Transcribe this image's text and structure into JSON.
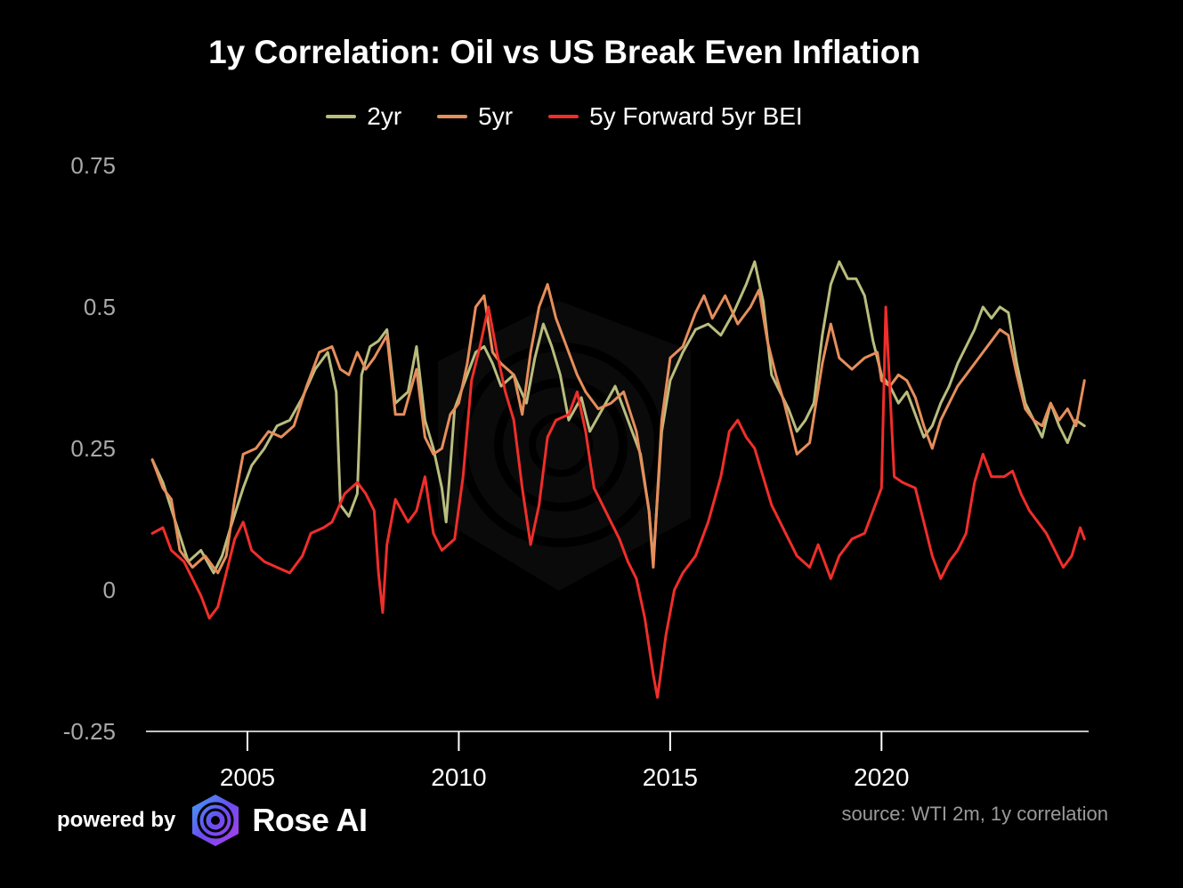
{
  "chart_data": {
    "type": "line",
    "title": "1y Correlation: Oil vs US Break Even Inflation",
    "xlabel": "",
    "ylabel": "",
    "xlim": [
      2002.6,
      2024.9
    ],
    "ylim": [
      -0.25,
      0.75
    ],
    "x_ticks": [
      2005,
      2010,
      2015,
      2020
    ],
    "x_tick_labels": [
      "2005",
      "2010",
      "2015",
      "2020"
    ],
    "y_ticks": [
      -0.25,
      0,
      0.25,
      0.5,
      0.75
    ],
    "y_tick_labels": [
      "-0.25",
      "0",
      "0.25",
      "0.5",
      "0.75"
    ],
    "grid": false,
    "legend_position": "top-center",
    "series": [
      {
        "name": "2yr",
        "color": "#b9bd7e",
        "points": [
          [
            2002.75,
            0.23
          ],
          [
            2003.0,
            0.19
          ],
          [
            2003.3,
            0.12
          ],
          [
            2003.6,
            0.05
          ],
          [
            2003.9,
            0.07
          ],
          [
            2004.2,
            0.03
          ],
          [
            2004.4,
            0.06
          ],
          [
            2004.6,
            0.11
          ],
          [
            2004.9,
            0.18
          ],
          [
            2005.1,
            0.22
          ],
          [
            2005.4,
            0.25
          ],
          [
            2005.7,
            0.29
          ],
          [
            2006.0,
            0.3
          ],
          [
            2006.3,
            0.34
          ],
          [
            2006.6,
            0.39
          ],
          [
            2006.9,
            0.42
          ],
          [
            2007.1,
            0.35
          ],
          [
            2007.2,
            0.15
          ],
          [
            2007.4,
            0.13
          ],
          [
            2007.6,
            0.17
          ],
          [
            2007.7,
            0.38
          ],
          [
            2007.9,
            0.43
          ],
          [
            2008.1,
            0.44
          ],
          [
            2008.3,
            0.46
          ],
          [
            2008.5,
            0.33
          ],
          [
            2008.8,
            0.35
          ],
          [
            2009.0,
            0.43
          ],
          [
            2009.2,
            0.3
          ],
          [
            2009.4,
            0.25
          ],
          [
            2009.6,
            0.18
          ],
          [
            2009.7,
            0.12
          ],
          [
            2009.9,
            0.32
          ],
          [
            2010.2,
            0.38
          ],
          [
            2010.4,
            0.42
          ],
          [
            2010.6,
            0.43
          ],
          [
            2010.8,
            0.4
          ],
          [
            2011.0,
            0.36
          ],
          [
            2011.3,
            0.38
          ],
          [
            2011.6,
            0.33
          ],
          [
            2011.8,
            0.41
          ],
          [
            2012.0,
            0.47
          ],
          [
            2012.2,
            0.43
          ],
          [
            2012.4,
            0.38
          ],
          [
            2012.6,
            0.3
          ],
          [
            2012.9,
            0.34
          ],
          [
            2013.1,
            0.28
          ],
          [
            2013.4,
            0.32
          ],
          [
            2013.7,
            0.36
          ],
          [
            2014.0,
            0.3
          ],
          [
            2014.3,
            0.24
          ],
          [
            2014.5,
            0.14
          ],
          [
            2014.6,
            0.05
          ],
          [
            2014.8,
            0.28
          ],
          [
            2015.0,
            0.37
          ],
          [
            2015.3,
            0.42
          ],
          [
            2015.6,
            0.46
          ],
          [
            2015.9,
            0.47
          ],
          [
            2016.2,
            0.45
          ],
          [
            2016.5,
            0.49
          ],
          [
            2016.8,
            0.54
          ],
          [
            2017.0,
            0.58
          ],
          [
            2017.2,
            0.51
          ],
          [
            2017.4,
            0.38
          ],
          [
            2017.6,
            0.35
          ],
          [
            2017.8,
            0.32
          ],
          [
            2018.0,
            0.28
          ],
          [
            2018.2,
            0.3
          ],
          [
            2018.4,
            0.33
          ],
          [
            2018.6,
            0.45
          ],
          [
            2018.8,
            0.54
          ],
          [
            2019.0,
            0.58
          ],
          [
            2019.2,
            0.55
          ],
          [
            2019.4,
            0.55
          ],
          [
            2019.6,
            0.52
          ],
          [
            2019.8,
            0.44
          ],
          [
            2020.0,
            0.38
          ],
          [
            2020.2,
            0.36
          ],
          [
            2020.4,
            0.33
          ],
          [
            2020.6,
            0.35
          ],
          [
            2020.8,
            0.31
          ],
          [
            2021.0,
            0.27
          ],
          [
            2021.2,
            0.29
          ],
          [
            2021.4,
            0.33
          ],
          [
            2021.6,
            0.36
          ],
          [
            2021.8,
            0.4
          ],
          [
            2022.0,
            0.43
          ],
          [
            2022.2,
            0.46
          ],
          [
            2022.4,
            0.5
          ],
          [
            2022.6,
            0.48
          ],
          [
            2022.8,
            0.5
          ],
          [
            2023.0,
            0.49
          ],
          [
            2023.2,
            0.4
          ],
          [
            2023.4,
            0.33
          ],
          [
            2023.6,
            0.3
          ],
          [
            2023.8,
            0.27
          ],
          [
            2024.0,
            0.33
          ],
          [
            2024.2,
            0.29
          ],
          [
            2024.4,
            0.26
          ],
          [
            2024.6,
            0.3
          ],
          [
            2024.8,
            0.29
          ]
        ]
      },
      {
        "name": "5yr",
        "color": "#e68e5b",
        "points": [
          [
            2002.75,
            0.23
          ],
          [
            2003.0,
            0.18
          ],
          [
            2003.2,
            0.16
          ],
          [
            2003.4,
            0.07
          ],
          [
            2003.7,
            0.04
          ],
          [
            2004.0,
            0.06
          ],
          [
            2004.3,
            0.03
          ],
          [
            2004.5,
            0.06
          ],
          [
            2004.7,
            0.16
          ],
          [
            2004.9,
            0.24
          ],
          [
            2005.2,
            0.25
          ],
          [
            2005.5,
            0.28
          ],
          [
            2005.8,
            0.27
          ],
          [
            2006.1,
            0.29
          ],
          [
            2006.4,
            0.36
          ],
          [
            2006.7,
            0.42
          ],
          [
            2007.0,
            0.43
          ],
          [
            2007.2,
            0.39
          ],
          [
            2007.4,
            0.38
          ],
          [
            2007.6,
            0.42
          ],
          [
            2007.8,
            0.39
          ],
          [
            2008.0,
            0.41
          ],
          [
            2008.3,
            0.45
          ],
          [
            2008.5,
            0.31
          ],
          [
            2008.7,
            0.31
          ],
          [
            2009.0,
            0.39
          ],
          [
            2009.2,
            0.27
          ],
          [
            2009.4,
            0.24
          ],
          [
            2009.6,
            0.25
          ],
          [
            2009.8,
            0.31
          ],
          [
            2010.0,
            0.33
          ],
          [
            2010.2,
            0.4
          ],
          [
            2010.4,
            0.5
          ],
          [
            2010.6,
            0.52
          ],
          [
            2010.8,
            0.42
          ],
          [
            2011.0,
            0.4
          ],
          [
            2011.3,
            0.38
          ],
          [
            2011.5,
            0.31
          ],
          [
            2011.7,
            0.42
          ],
          [
            2011.9,
            0.5
          ],
          [
            2012.1,
            0.54
          ],
          [
            2012.3,
            0.48
          ],
          [
            2012.6,
            0.42
          ],
          [
            2012.8,
            0.38
          ],
          [
            2013.0,
            0.35
          ],
          [
            2013.3,
            0.32
          ],
          [
            2013.6,
            0.33
          ],
          [
            2013.9,
            0.35
          ],
          [
            2014.2,
            0.28
          ],
          [
            2014.5,
            0.14
          ],
          [
            2014.6,
            0.04
          ],
          [
            2014.8,
            0.3
          ],
          [
            2015.0,
            0.41
          ],
          [
            2015.3,
            0.43
          ],
          [
            2015.6,
            0.49
          ],
          [
            2015.8,
            0.52
          ],
          [
            2016.0,
            0.48
          ],
          [
            2016.3,
            0.52
          ],
          [
            2016.6,
            0.47
          ],
          [
            2016.9,
            0.5
          ],
          [
            2017.1,
            0.53
          ],
          [
            2017.3,
            0.44
          ],
          [
            2017.5,
            0.38
          ],
          [
            2017.7,
            0.33
          ],
          [
            2018.0,
            0.24
          ],
          [
            2018.3,
            0.26
          ],
          [
            2018.6,
            0.4
          ],
          [
            2018.8,
            0.47
          ],
          [
            2019.0,
            0.41
          ],
          [
            2019.3,
            0.39
          ],
          [
            2019.6,
            0.41
          ],
          [
            2019.9,
            0.42
          ],
          [
            2020.0,
            0.37
          ],
          [
            2020.2,
            0.36
          ],
          [
            2020.4,
            0.38
          ],
          [
            2020.6,
            0.37
          ],
          [
            2020.8,
            0.34
          ],
          [
            2021.0,
            0.29
          ],
          [
            2021.2,
            0.25
          ],
          [
            2021.4,
            0.3
          ],
          [
            2021.6,
            0.33
          ],
          [
            2021.8,
            0.36
          ],
          [
            2022.0,
            0.38
          ],
          [
            2022.2,
            0.4
          ],
          [
            2022.4,
            0.42
          ],
          [
            2022.6,
            0.44
          ],
          [
            2022.8,
            0.46
          ],
          [
            2023.0,
            0.45
          ],
          [
            2023.2,
            0.38
          ],
          [
            2023.4,
            0.32
          ],
          [
            2023.6,
            0.3
          ],
          [
            2023.8,
            0.29
          ],
          [
            2024.0,
            0.33
          ],
          [
            2024.2,
            0.3
          ],
          [
            2024.4,
            0.32
          ],
          [
            2024.6,
            0.29
          ],
          [
            2024.8,
            0.37
          ]
        ]
      },
      {
        "name": "5y Forward 5yr BEI",
        "color": "#f02e2a",
        "points": [
          [
            2002.75,
            0.1
          ],
          [
            2003.0,
            0.11
          ],
          [
            2003.2,
            0.07
          ],
          [
            2003.5,
            0.05
          ],
          [
            2003.7,
            0.02
          ],
          [
            2003.9,
            -0.01
          ],
          [
            2004.1,
            -0.05
          ],
          [
            2004.3,
            -0.03
          ],
          [
            2004.5,
            0.03
          ],
          [
            2004.7,
            0.09
          ],
          [
            2004.9,
            0.12
          ],
          [
            2005.1,
            0.07
          ],
          [
            2005.4,
            0.05
          ],
          [
            2005.7,
            0.04
          ],
          [
            2006.0,
            0.03
          ],
          [
            2006.3,
            0.06
          ],
          [
            2006.5,
            0.1
          ],
          [
            2006.8,
            0.11
          ],
          [
            2007.0,
            0.12
          ],
          [
            2007.3,
            0.17
          ],
          [
            2007.6,
            0.19
          ],
          [
            2007.8,
            0.17
          ],
          [
            2008.0,
            0.14
          ],
          [
            2008.1,
            0.03
          ],
          [
            2008.2,
            -0.04
          ],
          [
            2008.3,
            0.08
          ],
          [
            2008.5,
            0.16
          ],
          [
            2008.8,
            0.12
          ],
          [
            2009.0,
            0.14
          ],
          [
            2009.2,
            0.2
          ],
          [
            2009.4,
            0.1
          ],
          [
            2009.6,
            0.07
          ],
          [
            2009.9,
            0.09
          ],
          [
            2010.1,
            0.2
          ],
          [
            2010.3,
            0.37
          ],
          [
            2010.5,
            0.43
          ],
          [
            2010.7,
            0.5
          ],
          [
            2010.9,
            0.42
          ],
          [
            2011.1,
            0.35
          ],
          [
            2011.3,
            0.3
          ],
          [
            2011.5,
            0.18
          ],
          [
            2011.7,
            0.08
          ],
          [
            2011.9,
            0.15
          ],
          [
            2012.1,
            0.27
          ],
          [
            2012.3,
            0.3
          ],
          [
            2012.6,
            0.31
          ],
          [
            2012.8,
            0.35
          ],
          [
            2013.0,
            0.28
          ],
          [
            2013.2,
            0.18
          ],
          [
            2013.4,
            0.15
          ],
          [
            2013.6,
            0.12
          ],
          [
            2013.8,
            0.09
          ],
          [
            2014.0,
            0.05
          ],
          [
            2014.2,
            0.02
          ],
          [
            2014.4,
            -0.05
          ],
          [
            2014.6,
            -0.15
          ],
          [
            2014.7,
            -0.19
          ],
          [
            2014.9,
            -0.08
          ],
          [
            2015.1,
            0.0
          ],
          [
            2015.3,
            0.03
          ],
          [
            2015.6,
            0.06
          ],
          [
            2015.9,
            0.12
          ],
          [
            2016.2,
            0.2
          ],
          [
            2016.4,
            0.28
          ],
          [
            2016.6,
            0.3
          ],
          [
            2016.8,
            0.27
          ],
          [
            2017.0,
            0.25
          ],
          [
            2017.2,
            0.2
          ],
          [
            2017.4,
            0.15
          ],
          [
            2017.6,
            0.12
          ],
          [
            2017.8,
            0.09
          ],
          [
            2018.0,
            0.06
          ],
          [
            2018.3,
            0.04
          ],
          [
            2018.5,
            0.08
          ],
          [
            2018.8,
            0.02
          ],
          [
            2019.0,
            0.06
          ],
          [
            2019.3,
            0.09
          ],
          [
            2019.6,
            0.1
          ],
          [
            2019.8,
            0.14
          ],
          [
            2020.0,
            0.18
          ],
          [
            2020.1,
            0.5
          ],
          [
            2020.3,
            0.2
          ],
          [
            2020.5,
            0.19
          ],
          [
            2020.8,
            0.18
          ],
          [
            2021.0,
            0.12
          ],
          [
            2021.2,
            0.06
          ],
          [
            2021.4,
            0.02
          ],
          [
            2021.6,
            0.05
          ],
          [
            2021.8,
            0.07
          ],
          [
            2022.0,
            0.1
          ],
          [
            2022.2,
            0.19
          ],
          [
            2022.4,
            0.24
          ],
          [
            2022.6,
            0.2
          ],
          [
            2022.9,
            0.2
          ],
          [
            2023.1,
            0.21
          ],
          [
            2023.3,
            0.17
          ],
          [
            2023.5,
            0.14
          ],
          [
            2023.7,
            0.12
          ],
          [
            2023.9,
            0.1
          ],
          [
            2024.1,
            0.07
          ],
          [
            2024.3,
            0.04
          ],
          [
            2024.5,
            0.06
          ],
          [
            2024.7,
            0.11
          ],
          [
            2024.8,
            0.09
          ]
        ]
      }
    ],
    "source": "source: WTI 2m, 1y correlation"
  },
  "footer": {
    "powered_by": "powered by",
    "brand_name": "Rose AI",
    "logo_icon": "rose-ai-logo-icon"
  }
}
